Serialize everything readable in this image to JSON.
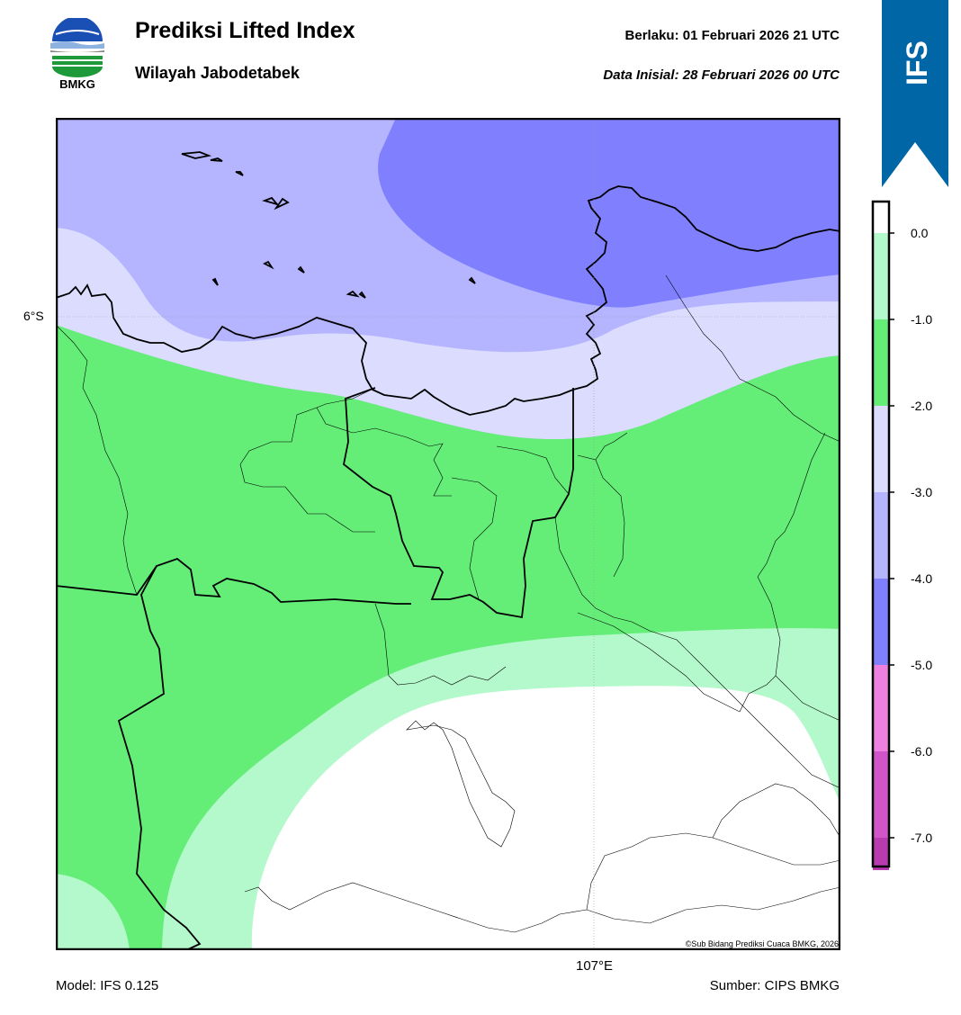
{
  "header": {
    "logo_text": "BMKG",
    "title": "Prediksi Lifted Index",
    "subtitle": "Wilayah Jabodetabek",
    "valid_time": "Berlaku:  01 Februari 2026 21 UTC",
    "init_time": "Data Inisial:  28 Februari 2026 00 UTC"
  },
  "badge": {
    "text": "IFS",
    "color": "#0066a6"
  },
  "map": {
    "lat_label": "6°S",
    "lon_label": "107°E",
    "copyright": "©Sub Bidang Prediksi Cuaca BMKG, 2026"
  },
  "colorbar": {
    "ticks": [
      "0.0",
      "-1.0",
      "-2.0",
      "-3.0",
      "-4.0",
      "-5.0",
      "-6.0",
      "-7.0"
    ],
    "colors": [
      "#ffffff",
      "#b4f9cb",
      "#64ee78",
      "#dcdcff",
      "#b4b4ff",
      "#8080ff",
      "#ee80e0",
      "#d055c8",
      "#b83bb0",
      "#8a1a7e"
    ]
  },
  "footer": {
    "model": "Model: IFS 0.125",
    "source": "Sumber: CIPS BMKG"
  }
}
